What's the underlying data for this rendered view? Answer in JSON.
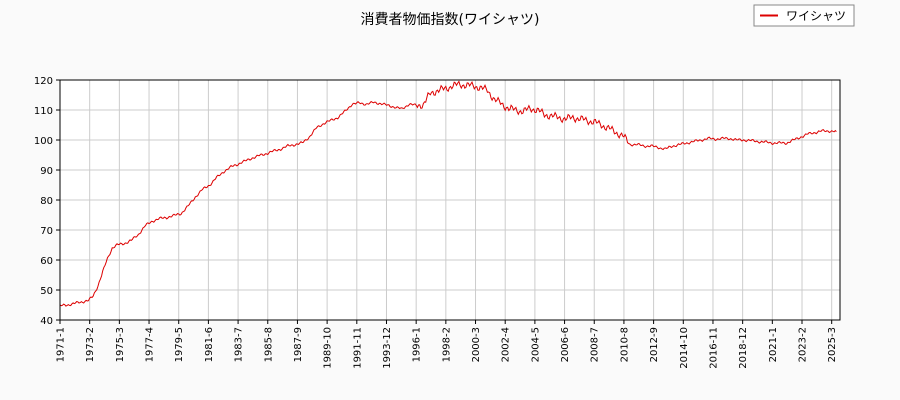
{
  "chart_data": {
    "type": "line",
    "title": "消費者物価指数(ワイシャツ)",
    "xlabel": "",
    "ylabel": "",
    "ylim": [
      40,
      120
    ],
    "y_ticks": [
      40,
      50,
      60,
      70,
      80,
      90,
      100,
      110,
      120
    ],
    "x_ticks": [
      "1971-1",
      "1973-2",
      "1975-3",
      "1977-4",
      "1979-5",
      "1981-6",
      "1983-7",
      "1985-8",
      "1987-9",
      "1989-10",
      "1991-11",
      "1993-12",
      "1996-1",
      "1998-2",
      "2000-3",
      "2002-4",
      "2004-5",
      "2006-6",
      "2008-7",
      "2010-8",
      "2012-9",
      "2014-10",
      "2016-11",
      "2018-12",
      "2021-1",
      "2023-2",
      "2025-3"
    ],
    "grid": true,
    "legend_position": "top-right",
    "colors": {
      "series": "#dd0000",
      "grid": "#cccccc",
      "background": "#fafafa",
      "plot_background": "#ffffff"
    },
    "series": [
      {
        "name": "ワイシャツ",
        "points": [
          [
            "1971-01",
            44.7
          ],
          [
            "1971-07",
            45.0
          ],
          [
            "1972-01",
            45.5
          ],
          [
            "1972-07",
            46.0
          ],
          [
            "1973-01",
            46.5
          ],
          [
            "1973-05",
            48.0
          ],
          [
            "1973-09",
            51.5
          ],
          [
            "1974-01",
            56.0
          ],
          [
            "1974-05",
            60.5
          ],
          [
            "1974-09",
            64.0
          ],
          [
            "1975-01",
            65.0
          ],
          [
            "1975-07",
            65.5
          ],
          [
            "1976-01",
            66.5
          ],
          [
            "1976-07",
            68.5
          ],
          [
            "1977-01",
            71.5
          ],
          [
            "1977-07",
            73.0
          ],
          [
            "1978-01",
            73.8
          ],
          [
            "1978-07",
            74.2
          ],
          [
            "1979-01",
            74.8
          ],
          [
            "1979-07",
            75.5
          ],
          [
            "1980-01",
            78.0
          ],
          [
            "1980-07",
            81.0
          ],
          [
            "1981-01",
            83.5
          ],
          [
            "1981-07",
            85.0
          ],
          [
            "1982-01",
            87.5
          ],
          [
            "1982-07",
            89.5
          ],
          [
            "1983-01",
            91.0
          ],
          [
            "1983-07",
            92.0
          ],
          [
            "1984-01",
            93.0
          ],
          [
            "1984-07",
            94.0
          ],
          [
            "1985-01",
            94.8
          ],
          [
            "1985-07",
            95.5
          ],
          [
            "1986-01",
            96.3
          ],
          [
            "1986-07",
            97.0
          ],
          [
            "1987-01",
            98.0
          ],
          [
            "1987-07",
            98.5
          ],
          [
            "1988-01",
            99.0
          ],
          [
            "1988-07",
            101.0
          ],
          [
            "1989-01",
            104.0
          ],
          [
            "1989-07",
            105.5
          ],
          [
            "1990-01",
            106.5
          ],
          [
            "1990-07",
            107.5
          ],
          [
            "1991-01",
            109.5
          ],
          [
            "1991-07",
            112.0
          ],
          [
            "1992-01",
            112.3
          ],
          [
            "1992-07",
            112.0
          ],
          [
            "1993-01",
            112.5
          ],
          [
            "1993-07",
            112.2
          ],
          [
            "1994-01",
            111.5
          ],
          [
            "1994-07",
            111.0
          ],
          [
            "1995-01",
            110.3
          ],
          [
            "1995-07",
            112.0
          ],
          [
            "1996-01",
            111.5
          ],
          [
            "1996-07",
            111.8
          ],
          [
            "1997-01",
            115.5
          ],
          [
            "1997-07",
            116.5
          ],
          [
            "1998-01",
            117.0
          ],
          [
            "1998-07",
            118.0
          ],
          [
            "1999-01",
            118.5
          ],
          [
            "1999-07",
            118.3
          ],
          [
            "2000-01",
            118.0
          ],
          [
            "2000-07",
            117.5
          ],
          [
            "2001-01",
            116.5
          ],
          [
            "2001-07",
            113.5
          ],
          [
            "2002-01",
            112.0
          ],
          [
            "2002-07",
            110.5
          ],
          [
            "2003-01",
            110.0
          ],
          [
            "2003-07",
            109.5
          ],
          [
            "2004-01",
            110.5
          ],
          [
            "2004-07",
            110.0
          ],
          [
            "2005-01",
            108.5
          ],
          [
            "2005-07",
            108.0
          ],
          [
            "2006-01",
            107.5
          ],
          [
            "2006-07",
            107.0
          ],
          [
            "2007-01",
            107.5
          ],
          [
            "2007-07",
            107.0
          ],
          [
            "2008-01",
            106.5
          ],
          [
            "2008-07",
            106.0
          ],
          [
            "2009-01",
            105.0
          ],
          [
            "2009-07",
            104.0
          ],
          [
            "2010-01",
            102.5
          ],
          [
            "2010-07",
            101.5
          ],
          [
            "2011-01",
            98.5
          ],
          [
            "2011-07",
            98.5
          ],
          [
            "2012-01",
            98.0
          ],
          [
            "2012-07",
            98.0
          ],
          [
            "2013-01",
            97.5
          ],
          [
            "2013-07",
            97.0
          ],
          [
            "2014-01",
            98.0
          ],
          [
            "2014-07",
            98.5
          ],
          [
            "2015-01",
            99.0
          ],
          [
            "2015-07",
            99.5
          ],
          [
            "2016-01",
            100.0
          ],
          [
            "2016-07",
            100.5
          ],
          [
            "2017-01",
            100.3
          ],
          [
            "2017-07",
            100.5
          ],
          [
            "2018-01",
            100.5
          ],
          [
            "2018-07",
            100.0
          ],
          [
            "2019-01",
            100.0
          ],
          [
            "2019-07",
            99.8
          ],
          [
            "2020-01",
            99.5
          ],
          [
            "2020-07",
            99.3
          ],
          [
            "2021-01",
            99.0
          ],
          [
            "2021-07",
            99.0
          ],
          [
            "2022-01",
            99.0
          ],
          [
            "2022-07",
            100.0
          ],
          [
            "2023-01",
            101.0
          ],
          [
            "2023-07",
            102.0
          ],
          [
            "2024-01",
            102.5
          ],
          [
            "2024-07",
            103.0
          ],
          [
            "2025-01",
            103.0
          ],
          [
            "2025-07",
            102.8
          ]
        ]
      }
    ]
  }
}
